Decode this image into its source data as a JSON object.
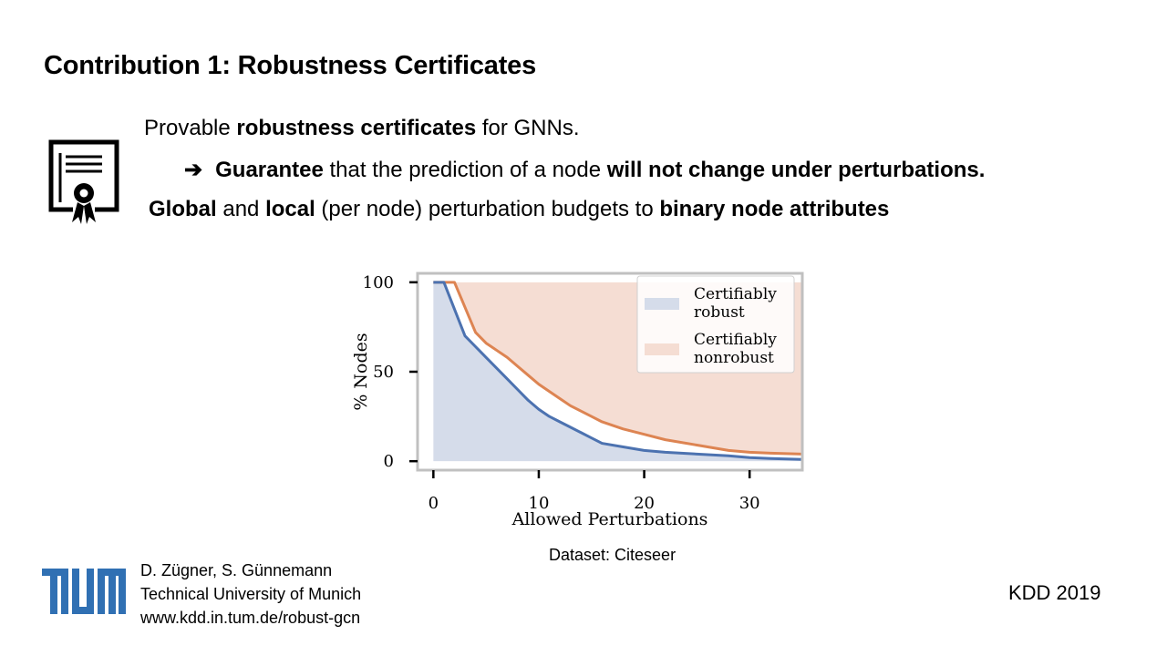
{
  "slide": {
    "title": "Contribution 1: Robustness Certificates",
    "line1": {
      "pre": "Provable ",
      "bold": "robustness certificates",
      "post": " for GNNs."
    },
    "line2": {
      "arrow": "➔",
      "bold1": "Guarantee",
      "mid": " that the prediction of a node ",
      "bold2": "will not change under perturbations."
    },
    "line3": {
      "bold1": "Global",
      "mid1": " and ",
      "bold2": "local",
      "mid2": " (per node) perturbation budgets to ",
      "bold3": "binary node attributes"
    },
    "dataset": "Dataset: Citeseer",
    "footer": {
      "authors": "D. Zügner, S. Günnemann",
      "affiliation": "Technical University of Munich",
      "url": "www.kdd.in.tum.de/robust-gcn",
      "venue": "KDD 2019"
    }
  },
  "icons": {
    "certificate": "certificate-icon",
    "logo": "tum-logo"
  },
  "chart_data": {
    "type": "area",
    "xlabel": "Allowed Perturbations",
    "ylabel": "% Nodes",
    "xlim": [
      -1.5,
      35
    ],
    "ylim": [
      -5,
      105
    ],
    "xticks": [
      0,
      10,
      20,
      30
    ],
    "yticks": [
      0,
      50,
      100
    ],
    "grid": false,
    "legend_position": "top-right",
    "series": [
      {
        "name": "Certifiably robust",
        "color": "#4c72b0",
        "fill": "#d5dcea",
        "x": [
          0,
          1,
          2,
          3,
          4,
          5,
          6,
          7,
          8,
          9,
          10,
          11,
          12,
          13,
          14,
          15,
          16,
          18,
          20,
          22,
          25,
          28,
          30,
          32,
          35
        ],
        "y": [
          100,
          100,
          85,
          70,
          64,
          58,
          52,
          46,
          40,
          34,
          29,
          25,
          22,
          19,
          16,
          13,
          10,
          8,
          6,
          5,
          4,
          3,
          2,
          1.5,
          1
        ]
      },
      {
        "name": "Certifiably nonrobust",
        "color": "#dd8452",
        "fill": "#f5ddd3",
        "x": [
          0,
          1,
          2,
          3,
          4,
          5,
          6,
          7,
          8,
          9,
          10,
          11,
          12,
          13,
          14,
          15,
          16,
          18,
          20,
          22,
          25,
          28,
          30,
          32,
          35
        ],
        "y": [
          100,
          100,
          100,
          86,
          72,
          66,
          62,
          58,
          53,
          48,
          43,
          39,
          35,
          31,
          28,
          25,
          22,
          18,
          15,
          12,
          9,
          6,
          5,
          4.5,
          4
        ]
      }
    ]
  }
}
